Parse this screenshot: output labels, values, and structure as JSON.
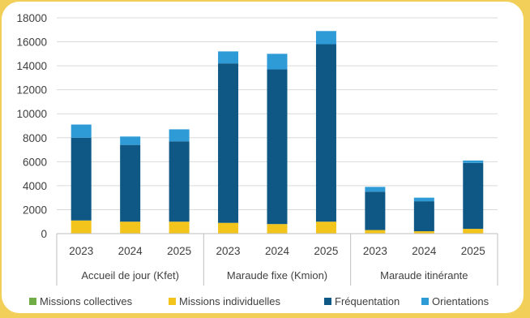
{
  "chart_data": {
    "type": "bar",
    "stacked": true,
    "groups": [
      {
        "label": "Accueil de jour (Kfet)",
        "years": [
          "2023",
          "2024",
          "2025"
        ]
      },
      {
        "label": "Maraude fixe (Kmion)",
        "years": [
          "2023",
          "2024",
          "2025"
        ]
      },
      {
        "label": "Maraude itinérante",
        "years": [
          "2023",
          "2024",
          "2025"
        ]
      }
    ],
    "series": [
      {
        "name": "Missions collectives",
        "color": "#70ad47",
        "values": [
          0,
          0,
          0,
          0,
          0,
          0,
          0,
          0,
          0
        ]
      },
      {
        "name": "Missions individuelles",
        "color": "#f2c41c",
        "values": [
          1100,
          1000,
          1000,
          900,
          800,
          1000,
          300,
          200,
          400
        ]
      },
      {
        "name": "Fréquentation",
        "color": "#0f5784",
        "values": [
          6900,
          6400,
          6700,
          13300,
          12900,
          14800,
          3200,
          2500,
          5500
        ]
      },
      {
        "name": "Orientations",
        "color": "#2e9bd6",
        "values": [
          1100,
          700,
          1000,
          1000,
          1300,
          1100,
          400,
          300,
          200
        ]
      }
    ],
    "ylim": [
      0,
      18000
    ],
    "yticks": [
      "0",
      "2000",
      "4000",
      "6000",
      "8000",
      "10000",
      "12000",
      "14000",
      "16000",
      "18000"
    ],
    "grid": true,
    "legend": "bottom"
  }
}
